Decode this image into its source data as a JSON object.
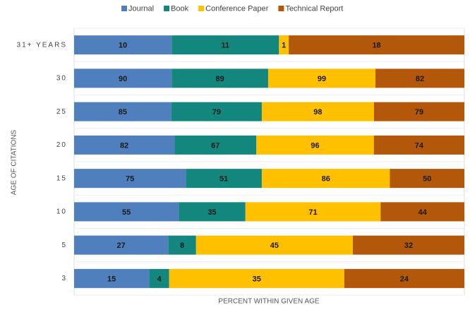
{
  "chart_data": {
    "type": "bar",
    "orientation": "horizontal",
    "stack": "percent",
    "x_label": "PERCENT WITHIN GIVEN AGE",
    "y_label": "AGE OF CITATIONS",
    "categories": [
      "31+ YEARS",
      "30",
      "25",
      "20",
      "15",
      "10",
      "5",
      "3"
    ],
    "series": [
      {
        "name": "Journal",
        "color": "#4f80bd",
        "values": [
          10,
          90,
          85,
          82,
          75,
          55,
          27,
          15
        ]
      },
      {
        "name": "Book",
        "color": "#13877e",
        "values": [
          11,
          89,
          79,
          67,
          51,
          35,
          8,
          4
        ]
      },
      {
        "name": "Conference Paper",
        "color": "#ffc000",
        "values": [
          1,
          99,
          98,
          96,
          86,
          71,
          45,
          35
        ]
      },
      {
        "name": "Technical Report",
        "color": "#b3580a",
        "values": [
          18,
          82,
          79,
          74,
          50,
          44,
          32,
          24
        ]
      }
    ],
    "legend": "top"
  }
}
